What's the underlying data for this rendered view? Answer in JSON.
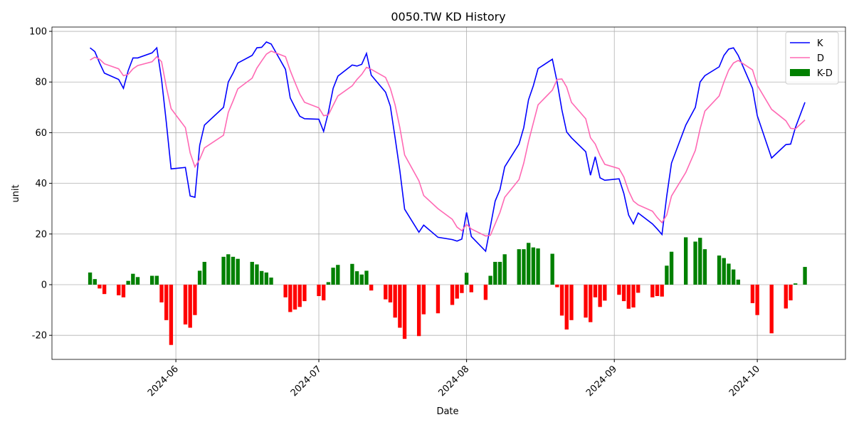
{
  "chart_data": {
    "type": "line",
    "title": "0050.TW KD History",
    "xlabel": "Date",
    "ylabel": "unit",
    "x": [
      19857,
      19858,
      19859,
      19860,
      19863,
      19864,
      19865,
      19866,
      19867,
      19870,
      19871,
      19872,
      19873,
      19874,
      19877,
      19878,
      19879,
      19880,
      19881,
      19885,
      19886,
      19887,
      19888,
      19891,
      19892,
      19893,
      19894,
      19895,
      19898,
      19899,
      19900,
      19901,
      19902,
      19905,
      19906,
      19907,
      19908,
      19909,
      19912,
      19913,
      19914,
      19915,
      19916,
      19919,
      19920,
      19921,
      19922,
      19923,
      19926,
      19927,
      19930,
      19933,
      19934,
      19935,
      19936,
      19937,
      19940,
      19941,
      19942,
      19943,
      19944,
      19947,
      19948,
      19949,
      19950,
      19951,
      19954,
      19955,
      19956,
      19957,
      19958,
      19961,
      19962,
      19963,
      19964,
      19965,
      19968,
      19969,
      19970,
      19971,
      19972,
      19975,
      19976,
      19977,
      19978,
      19979,
      19982,
      19984,
      19985,
      19986,
      19989,
      19990,
      19991,
      19992,
      19993,
      19996,
      19997,
      20000,
      20003,
      20004,
      20005,
      20007
    ],
    "series": [
      {
        "name": "K",
        "type": "line",
        "color": "#0000ff",
        "values": [
          93.5,
          92,
          87.5,
          83.5,
          81,
          77.5,
          84.5,
          89.5,
          89.5,
          91.5,
          93.5,
          81,
          64,
          45.7,
          46.3,
          35,
          34.5,
          55,
          63,
          70,
          80,
          83.5,
          87.5,
          90.5,
          93.5,
          93.7,
          95.8,
          95,
          85,
          73.7,
          70,
          66.5,
          65.5,
          65.3,
          60.5,
          68,
          77.5,
          82.3,
          86.7,
          86.3,
          87,
          91.3,
          82.7,
          76,
          70.5,
          58,
          45,
          29.8,
          20.7,
          23.5,
          18.7,
          17.8,
          17.2,
          18,
          28.5,
          19,
          13.2,
          23,
          33,
          37.5,
          46.5,
          55.5,
          62,
          73,
          78.5,
          85.3,
          89,
          80,
          69,
          60.3,
          58,
          52.5,
          43.2,
          50.5,
          42.2,
          41.2,
          41.8,
          36,
          27.5,
          24,
          28.3,
          24,
          22,
          19.8,
          35,
          48,
          63,
          70,
          80,
          82.5,
          86,
          90.5,
          93,
          93.5,
          90.5,
          77.5,
          66.7,
          50,
          55.3,
          55.5,
          62,
          72
        ]
      },
      {
        "name": "D",
        "type": "line",
        "color": "#ff69b4",
        "values": [
          88.7,
          89.8,
          89,
          87.2,
          85.2,
          82.5,
          83,
          85.2,
          86.5,
          88,
          90,
          88,
          78,
          69.5,
          62,
          52,
          46.5,
          49.5,
          54,
          59,
          68,
          72.5,
          77.3,
          81.5,
          85.5,
          88.3,
          91,
          92.2,
          90,
          84.5,
          79.8,
          75.3,
          72,
          69.8,
          66.7,
          67,
          70.8,
          74.5,
          78.5,
          81,
          83,
          85.8,
          85,
          81.8,
          77.5,
          71,
          62,
          51.2,
          41,
          35.2,
          30,
          25.8,
          22.7,
          21.3,
          23.8,
          22,
          19.2,
          19.5,
          24,
          28.5,
          34.5,
          41.5,
          48,
          56.5,
          63.8,
          71,
          76.8,
          81,
          81.2,
          78,
          72,
          65.5,
          58,
          55.5,
          51,
          47.5,
          45.8,
          42.5,
          37,
          33,
          31.5,
          29,
          26.5,
          24.5,
          27.5,
          35,
          44.3,
          53,
          61.5,
          68.5,
          74.5,
          80,
          84.7,
          87.5,
          88.5,
          84.8,
          78.7,
          69.2,
          64.7,
          61.7,
          61.5,
          65
        ]
      },
      {
        "name": "K-D",
        "type": "bar",
        "color": "#008000",
        "negative_color": "#ff0000",
        "values": [
          4.8,
          2.2,
          -1.5,
          -3.7,
          -4.2,
          -5,
          1.5,
          4.3,
          3,
          3.5,
          3.5,
          -7,
          -14,
          -23.8,
          -15.7,
          -17,
          -12,
          5.5,
          9,
          11,
          12,
          11,
          10.2,
          9,
          8,
          5.4,
          4.8,
          2.8,
          -5,
          -10.8,
          -9.8,
          -8.8,
          -6.5,
          -4.5,
          -6.2,
          1,
          6.7,
          7.8,
          8.2,
          5.3,
          4,
          5.5,
          -2.3,
          -5.8,
          -7,
          -13,
          -17,
          -21.4,
          -20.3,
          -11.7,
          -11.3,
          -8,
          -5.5,
          -3.3,
          4.7,
          -3,
          -6,
          3.5,
          9,
          9,
          12,
          14,
          14,
          16.5,
          14.7,
          14.3,
          12.2,
          -1,
          -12.2,
          -17.7,
          -14,
          -13,
          -14.8,
          -5,
          -8.8,
          -6.3,
          -4,
          -6.5,
          -9.5,
          -9,
          -3.2,
          -5,
          -4.5,
          -4.7,
          7.5,
          13,
          18.7,
          17,
          18.5,
          14,
          11.5,
          10.5,
          8.3,
          6,
          2,
          -7.3,
          -12,
          -19.2,
          -9.4,
          -6.2,
          0.5,
          7
        ]
      }
    ],
    "xlim": [
      19849,
      20015.5
    ],
    "xticks": [
      {
        "value": 19875,
        "label": "2024-06"
      },
      {
        "value": 19905,
        "label": "2024-07"
      },
      {
        "value": 19936,
        "label": "2024-08"
      },
      {
        "value": 19967,
        "label": "2024-09"
      },
      {
        "value": 19997,
        "label": "2024-10"
      }
    ],
    "ylim": [
      -29.5,
      101.7
    ],
    "yticks": [
      -20,
      0,
      20,
      40,
      60,
      80,
      100
    ],
    "grid": true,
    "legend": "upper right"
  }
}
